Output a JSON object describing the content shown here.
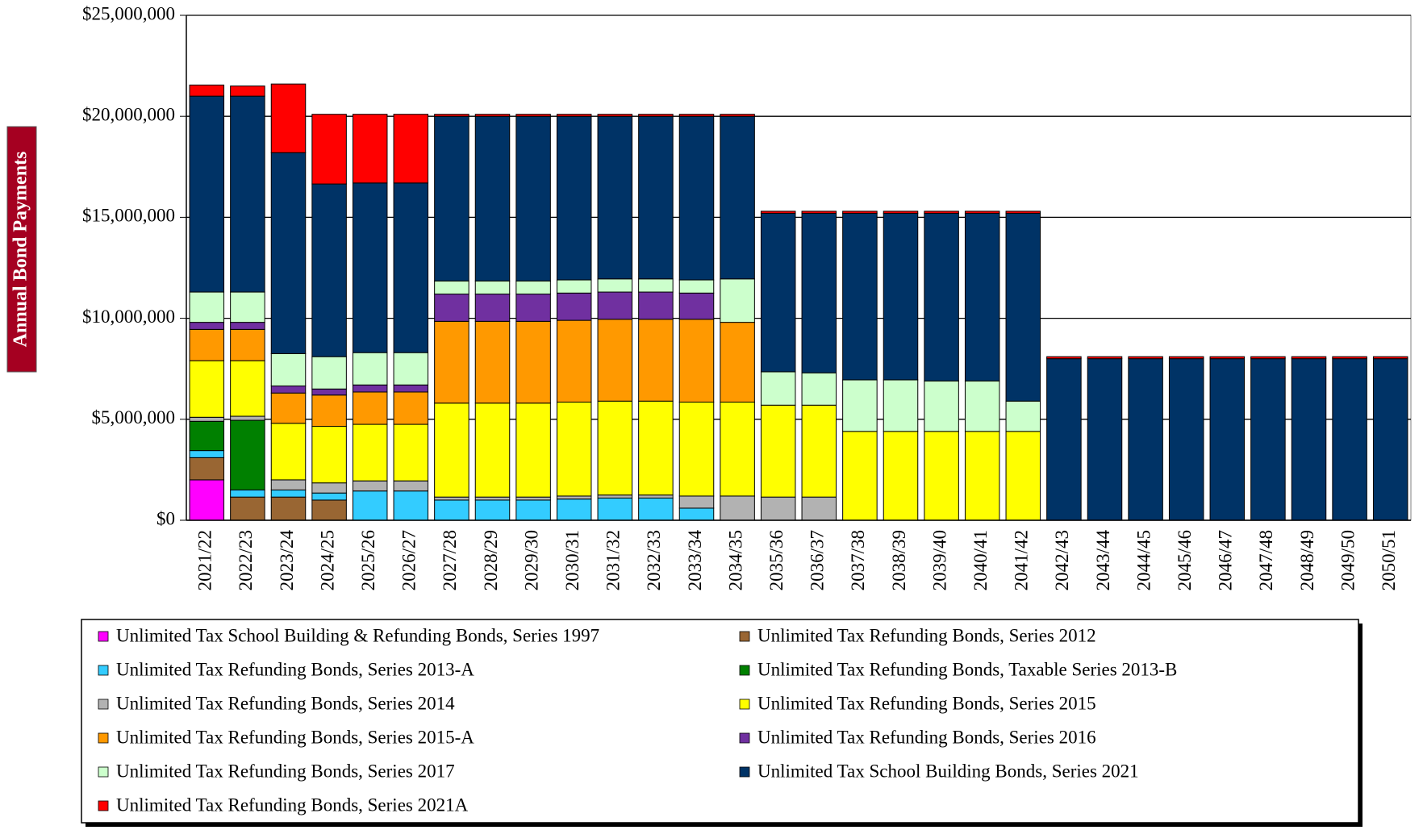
{
  "chart_data": {
    "type": "stacked_bar",
    "y_label": "Annual Bond Payments",
    "categories": [
      "2021/22",
      "2022/23",
      "2023/24",
      "2024/25",
      "2025/26",
      "2026/27",
      "2027/28",
      "2028/29",
      "2029/30",
      "2030/31",
      "2031/32",
      "2032/33",
      "2033/34",
      "2034/35",
      "2035/36",
      "2036/37",
      "2037/38",
      "2038/39",
      "2039/40",
      "2040/41",
      "2041/42",
      "2042/43",
      "2043/44",
      "2044/45",
      "2045/46",
      "2046/47",
      "2047/48",
      "2048/49",
      "2049/50",
      "2050/51"
    ],
    "ylim": [
      0,
      25000000
    ],
    "yticks": [
      {
        "value": 0,
        "label": "$0"
      },
      {
        "value": 5000000,
        "label": "$5,000,000"
      },
      {
        "value": 10000000,
        "label": "$10,000,000"
      },
      {
        "value": 15000000,
        "label": "$15,000,000"
      },
      {
        "value": 20000000,
        "label": "$20,000,000"
      },
      {
        "value": 25000000,
        "label": "$25,000,000"
      }
    ],
    "grid": true,
    "series": [
      {
        "name": "Unlimited Tax School Building & Refunding Bonds, Series 1997",
        "color": "#ff00ff",
        "values": [
          2000000,
          0,
          0,
          0,
          0,
          0,
          0,
          0,
          0,
          0,
          0,
          0,
          0,
          0,
          0,
          0,
          0,
          0,
          0,
          0,
          0,
          0,
          0,
          0,
          0,
          0,
          0,
          0,
          0,
          0
        ]
      },
      {
        "name": "Unlimited Tax Refunding Bonds, Series 2012",
        "color": "#996633",
        "values": [
          1100000,
          1150000,
          1150000,
          1000000,
          0,
          0,
          0,
          0,
          0,
          0,
          0,
          0,
          0,
          0,
          0,
          0,
          0,
          0,
          0,
          0,
          0,
          0,
          0,
          0,
          0,
          0,
          0,
          0,
          0,
          0
        ]
      },
      {
        "name": "Unlimited Tax Refunding Bonds, Series 2013-A",
        "color": "#33ccff",
        "values": [
          350000,
          350000,
          350000,
          350000,
          1450000,
          1450000,
          1000000,
          1000000,
          1000000,
          1050000,
          1100000,
          1100000,
          600000,
          0,
          0,
          0,
          0,
          0,
          0,
          0,
          0,
          0,
          0,
          0,
          0,
          0,
          0,
          0,
          0,
          0
        ]
      },
      {
        "name": "Unlimited Tax Refunding Bonds, Taxable Series 2013-B",
        "color": "#008000",
        "values": [
          1450000,
          3450000,
          0,
          0,
          0,
          0,
          0,
          0,
          0,
          0,
          0,
          0,
          0,
          0,
          0,
          0,
          0,
          0,
          0,
          0,
          0,
          0,
          0,
          0,
          0,
          0,
          0,
          0,
          0,
          0
        ]
      },
      {
        "name": "Unlimited Tax Refunding Bonds, Series 2014",
        "color": "#b2b2b2",
        "values": [
          200000,
          200000,
          500000,
          500000,
          500000,
          500000,
          150000,
          150000,
          150000,
          150000,
          150000,
          150000,
          600000,
          1200000,
          1150000,
          1150000,
          0,
          0,
          0,
          0,
          0,
          0,
          0,
          0,
          0,
          0,
          0,
          0,
          0,
          0
        ]
      },
      {
        "name": "Unlimited Tax Refunding Bonds, Series 2015",
        "color": "#ffff00",
        "values": [
          2800000,
          2750000,
          2800000,
          2800000,
          2800000,
          2800000,
          4650000,
          4650000,
          4650000,
          4650000,
          4650000,
          4650000,
          4650000,
          4650000,
          4550000,
          4550000,
          4400000,
          4400000,
          4400000,
          4400000,
          4400000,
          0,
          0,
          0,
          0,
          0,
          0,
          0,
          0,
          0
        ]
      },
      {
        "name": "Unlimited Tax Refunding Bonds, Series 2015-A",
        "color": "#ff9900",
        "values": [
          1550000,
          1550000,
          1500000,
          1550000,
          1600000,
          1600000,
          4050000,
          4050000,
          4050000,
          4050000,
          4050000,
          4050000,
          4100000,
          3950000,
          0,
          0,
          0,
          0,
          0,
          0,
          0,
          0,
          0,
          0,
          0,
          0,
          0,
          0,
          0,
          0
        ]
      },
      {
        "name": "Unlimited Tax Refunding Bonds, Series 2016",
        "color": "#7030a0",
        "values": [
          350000,
          350000,
          350000,
          300000,
          350000,
          350000,
          1350000,
          1350000,
          1350000,
          1350000,
          1350000,
          1350000,
          1300000,
          0,
          0,
          0,
          0,
          0,
          0,
          0,
          0,
          0,
          0,
          0,
          0,
          0,
          0,
          0,
          0,
          0
        ]
      },
      {
        "name": "Unlimited Tax Refunding Bonds, Series 2017",
        "color": "#ccffcc",
        "values": [
          1500000,
          1500000,
          1600000,
          1600000,
          1600000,
          1600000,
          650000,
          650000,
          650000,
          650000,
          650000,
          650000,
          650000,
          2150000,
          1650000,
          1600000,
          2550000,
          2550000,
          2500000,
          2500000,
          1500000,
          0,
          0,
          0,
          0,
          0,
          0,
          0,
          0,
          0
        ]
      },
      {
        "name": "Unlimited Tax School Building Bonds, Series 2021",
        "color": "#003366",
        "values": [
          9700000,
          9700000,
          9950000,
          8550000,
          8400000,
          8400000,
          8150000,
          8150000,
          8150000,
          8100000,
          8050000,
          8050000,
          8100000,
          8050000,
          7850000,
          7900000,
          8250000,
          8250000,
          8300000,
          8300000,
          9300000,
          8000000,
          8000000,
          8000000,
          8000000,
          8000000,
          8000000,
          8000000,
          8000000,
          8000000
        ]
      },
      {
        "name": "Unlimited Tax Refunding Bonds, Series 2021A",
        "color": "#ff0000",
        "values": [
          550000,
          500000,
          3400000,
          3450000,
          3400000,
          3400000,
          100000,
          100000,
          100000,
          100000,
          100000,
          100000,
          100000,
          100000,
          100000,
          100000,
          100000,
          100000,
          100000,
          100000,
          100000,
          100000,
          100000,
          100000,
          100000,
          100000,
          100000,
          100000,
          100000,
          100000
        ]
      }
    ]
  }
}
